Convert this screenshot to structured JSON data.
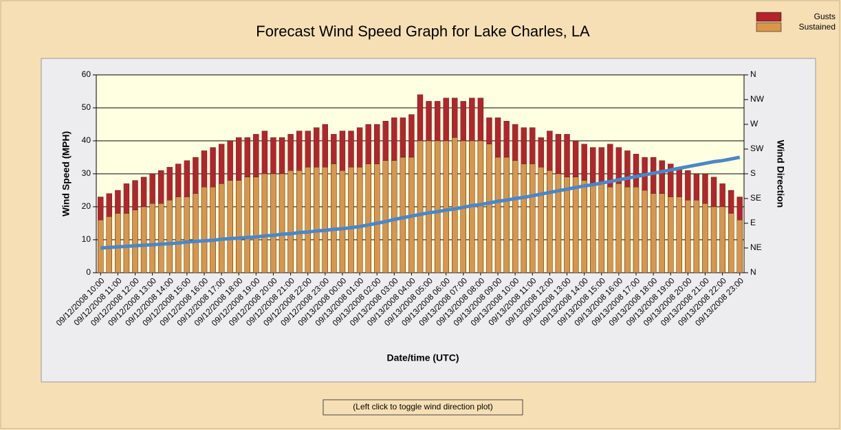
{
  "chart_data": {
    "type": "bar",
    "title": "Forecast Wind Speed Graph for Lake Charles, LA",
    "xlabel": "Date/time (UTC)",
    "ylabel": "Wind Speed (MPH)",
    "y2label": "Wind Direction",
    "button": "(Left click to toggle wind direction plot)",
    "categories": [
      "09/12/2008 10:00",
      null,
      "09/12/2008 11:00",
      null,
      "09/12/2008 12:00",
      null,
      "09/12/2008 13:00",
      null,
      "09/12/2008 14:00",
      null,
      "09/12/2008 15:00",
      null,
      "09/12/2008 16:00",
      null,
      "09/12/2008 17:00",
      null,
      "09/12/2008 18:00",
      null,
      "09/12/2008 19:00",
      null,
      "09/12/2008 20:00",
      null,
      "09/12/2008 21:00",
      null,
      "09/12/2008 22:00",
      null,
      "09/12/2008 23:00",
      null,
      "09/13/2008 00:00",
      null,
      "09/13/2008 01:00",
      null,
      "09/13/2008 02:00",
      null,
      "09/13/2008 03:00",
      null,
      "09/13/2008 04:00",
      null,
      "09/13/2008 05:00",
      null,
      "09/13/2008 06:00",
      null,
      "09/13/2008 07:00",
      null,
      "09/13/2008 08:00",
      null,
      "09/13/2008 09:00",
      null,
      "09/13/2008 10:00",
      null,
      "09/13/2008 11:00",
      null,
      "09/13/2008 12:00",
      null,
      "09/13/2008 13:00",
      null,
      "09/13/2008 14:00",
      null,
      "09/13/2008 15:00",
      null,
      "09/13/2008 16:00",
      null,
      "09/13/2008 17:00",
      null,
      "09/13/2008 18:00",
      null,
      "09/13/2008 19:00",
      null,
      "09/13/2008 20:00",
      null,
      "09/13/2008 21:00",
      null,
      "09/13/2008 22:00",
      null,
      "09/13/2008 23:00"
    ],
    "series": [
      {
        "name": "Gusts",
        "color": "#b3252b",
        "values": [
          23,
          24,
          25,
          27,
          28,
          29,
          30,
          31,
          32,
          33,
          34,
          35,
          37,
          38,
          39,
          40,
          41,
          41,
          42,
          43,
          41,
          41,
          42,
          43,
          43,
          44,
          45,
          42,
          43,
          43,
          44,
          45,
          45,
          46,
          47,
          47,
          48,
          54,
          52,
          52,
          53,
          53,
          52,
          53,
          53,
          47,
          47,
          46,
          45,
          44,
          44,
          41,
          43,
          42,
          42,
          40,
          39,
          38,
          38,
          39,
          38,
          37,
          36,
          35,
          35,
          34,
          33,
          32,
          31,
          30,
          30,
          29,
          27,
          25,
          23
        ]
      },
      {
        "name": "Sustained",
        "color": "#d9954b",
        "values": [
          16,
          17,
          18,
          18,
          19,
          20,
          21,
          21,
          22,
          23,
          23,
          24,
          26,
          26,
          27,
          28,
          28,
          29,
          29,
          30,
          30,
          30,
          31,
          31,
          32,
          32,
          32,
          33,
          31,
          32,
          32,
          33,
          33,
          34,
          34,
          35,
          35,
          40,
          40,
          40,
          40,
          41,
          40,
          40,
          40,
          39,
          35,
          35,
          34,
          33,
          33,
          32,
          31,
          30,
          29,
          29,
          28,
          27,
          27,
          26,
          27,
          26,
          26,
          25,
          24,
          24,
          23,
          23,
          22,
          22,
          21,
          20,
          20,
          18,
          16
        ]
      },
      {
        "name": "Wind Direction",
        "type": "line",
        "axis": "y2",
        "color": "#4a87c6",
        "values": [
          45,
          46,
          47,
          48,
          49,
          50,
          51,
          52,
          53,
          54,
          56,
          57,
          58,
          59,
          61,
          62,
          63,
          64,
          65,
          67,
          68,
          70,
          71,
          73,
          74,
          76,
          77,
          79,
          80,
          82,
          84,
          87,
          90,
          93,
          97,
          100,
          103,
          106,
          109,
          111,
          114,
          116,
          119,
          122,
          124,
          127,
          130,
          132,
          135,
          137,
          140,
          143,
          146,
          149,
          152,
          155,
          158,
          160,
          163,
          166,
          169,
          172,
          175,
          178,
          181,
          184,
          187,
          190,
          193,
          196,
          199,
          202,
          204,
          207,
          210
        ]
      }
    ],
    "ylim": [
      0,
      60
    ],
    "yticks": [
      0,
      10,
      20,
      30,
      40,
      50,
      60
    ],
    "y2lim": [
      0,
      360
    ],
    "y2ticks": [
      {
        "value": 0,
        "label": "N"
      },
      {
        "value": 45,
        "label": "NE"
      },
      {
        "value": 90,
        "label": "E"
      },
      {
        "value": 135,
        "label": "SE"
      },
      {
        "value": 180,
        "label": "S"
      },
      {
        "value": 225,
        "label": "SW"
      },
      {
        "value": 270,
        "label": "W"
      },
      {
        "value": 315,
        "label": "NW"
      },
      {
        "value": 360,
        "label": "N"
      }
    ],
    "grid": true,
    "legend": "top-right"
  }
}
